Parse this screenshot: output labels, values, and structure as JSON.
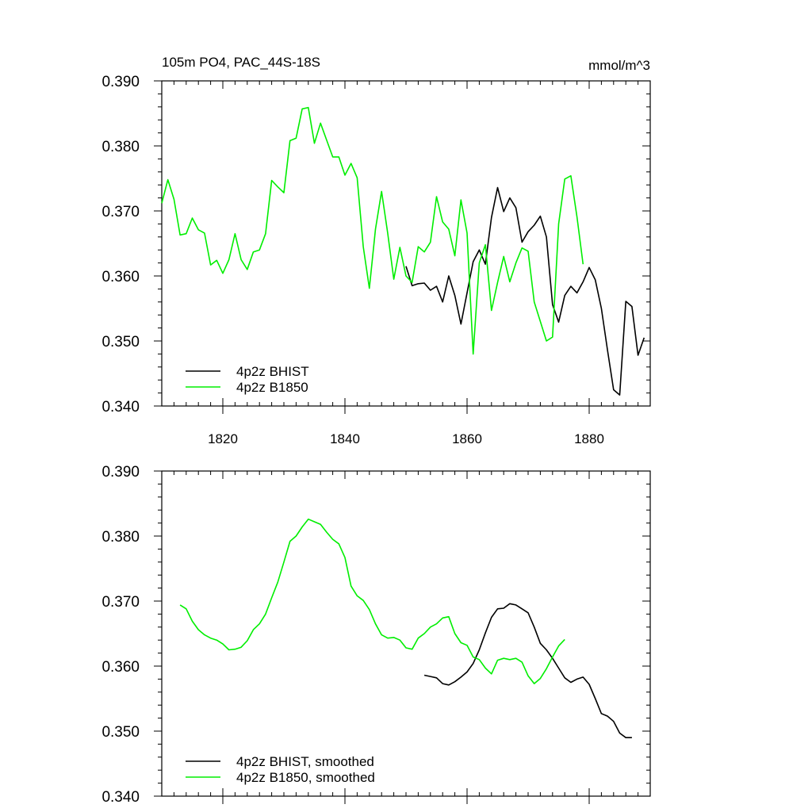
{
  "header": {
    "title": "105m PO4, PAC_44S-18S",
    "units": "mmol/m^3"
  },
  "colors": {
    "bhist": "#000000",
    "b1850": "#00ee00"
  },
  "chart_data": [
    {
      "type": "line",
      "title": "105m PO4, PAC_44S-18S",
      "units": "mmol/m^3",
      "xlim": [
        1810,
        1890
      ],
      "ylim": [
        0.34,
        0.39
      ],
      "xticks": [
        1820,
        1840,
        1860,
        1880
      ],
      "xtick_labels": [
        "1820",
        "1840",
        "1860",
        "1880"
      ],
      "yticks": [
        0.34,
        0.35,
        0.36,
        0.37,
        0.38,
        0.39
      ],
      "ytick_labels": [
        "0.340",
        "0.350",
        "0.360",
        "0.370",
        "0.380",
        "0.390"
      ],
      "legend": "bottom-left",
      "series": [
        {
          "name": "4p2z BHIST",
          "color": "#000000",
          "x": [
            1850,
            1851,
            1852,
            1853,
            1854,
            1855,
            1856,
            1857,
            1858,
            1859,
            1860,
            1861,
            1862,
            1863,
            1864,
            1865,
            1866,
            1867,
            1868,
            1869,
            1870,
            1871,
            1872,
            1873,
            1874,
            1875,
            1876,
            1877,
            1878,
            1879,
            1880,
            1881,
            1882,
            1883,
            1884,
            1885,
            1886,
            1887,
            1888,
            1889
          ],
          "y": [
            0.3615,
            0.3585,
            0.3588,
            0.3589,
            0.3578,
            0.3584,
            0.356,
            0.36,
            0.357,
            0.3526,
            0.3574,
            0.3622,
            0.364,
            0.3618,
            0.369,
            0.3736,
            0.3699,
            0.372,
            0.3705,
            0.3652,
            0.3668,
            0.3678,
            0.3692,
            0.366,
            0.3556,
            0.3529,
            0.357,
            0.3584,
            0.3574,
            0.3591,
            0.3613,
            0.3594,
            0.355,
            0.3486,
            0.3425,
            0.3417,
            0.3561,
            0.3553,
            0.3478,
            0.3505
          ]
        },
        {
          "name": "4p2z B1850",
          "color": "#00ee00",
          "x": [
            1810,
            1811,
            1812,
            1813,
            1814,
            1815,
            1816,
            1817,
            1818,
            1819,
            1820,
            1821,
            1822,
            1823,
            1824,
            1825,
            1826,
            1827,
            1828,
            1829,
            1830,
            1831,
            1832,
            1833,
            1834,
            1835,
            1836,
            1837,
            1838,
            1839,
            1840,
            1841,
            1842,
            1843,
            1844,
            1845,
            1846,
            1847,
            1848,
            1849,
            1850,
            1851,
            1852,
            1853,
            1854,
            1855,
            1856,
            1857,
            1858,
            1859,
            1860,
            1861,
            1862,
            1863,
            1864,
            1865,
            1866,
            1867,
            1868,
            1869,
            1870,
            1871,
            1872,
            1873,
            1874,
            1875,
            1876,
            1877,
            1878,
            1879
          ],
          "y": [
            0.3712,
            0.3748,
            0.3718,
            0.3663,
            0.3665,
            0.3689,
            0.3671,
            0.3666,
            0.3617,
            0.3624,
            0.3604,
            0.3625,
            0.3665,
            0.3625,
            0.361,
            0.3637,
            0.364,
            0.3665,
            0.3747,
            0.3737,
            0.3728,
            0.3808,
            0.3812,
            0.3857,
            0.3859,
            0.3804,
            0.3835,
            0.3809,
            0.3783,
            0.3783,
            0.3755,
            0.3773,
            0.3751,
            0.3645,
            0.3581,
            0.3672,
            0.373,
            0.3666,
            0.3595,
            0.3644,
            0.36,
            0.359,
            0.3645,
            0.3637,
            0.3652,
            0.3722,
            0.3683,
            0.3672,
            0.3631,
            0.3717,
            0.3666,
            0.348,
            0.362,
            0.3648,
            0.3547,
            0.359,
            0.363,
            0.3591,
            0.362,
            0.3643,
            0.3638,
            0.356,
            0.353,
            0.35,
            0.3506,
            0.368,
            0.3749,
            0.3754,
            0.3691,
            0.3618
          ]
        }
      ]
    },
    {
      "type": "line",
      "xlim": [
        1810,
        1890
      ],
      "ylim": [
        0.34,
        0.39
      ],
      "xticks": [
        1820,
        1840,
        1860,
        1880
      ],
      "yticks": [
        0.34,
        0.35,
        0.36,
        0.37,
        0.38,
        0.39
      ],
      "ytick_labels": [
        "0.340",
        "0.350",
        "0.360",
        "0.370",
        "0.380",
        "0.390"
      ],
      "legend": "bottom-left",
      "series": [
        {
          "name": "4p2z BHIST, smoothed",
          "color": "#000000",
          "x": [
            1853,
            1854,
            1855,
            1856,
            1857,
            1858,
            1859,
            1860,
            1861,
            1862,
            1863,
            1864,
            1865,
            1866,
            1867,
            1868,
            1869,
            1870,
            1871,
            1872,
            1873,
            1874,
            1875,
            1876,
            1877,
            1878,
            1879,
            1880,
            1881,
            1882,
            1883,
            1884,
            1885,
            1886,
            1887
          ],
          "y": [
            0.3586,
            0.3584,
            0.3582,
            0.3573,
            0.3571,
            0.3576,
            0.3583,
            0.3591,
            0.3604,
            0.3625,
            0.3651,
            0.3675,
            0.3688,
            0.3689,
            0.3696,
            0.3694,
            0.3688,
            0.3682,
            0.366,
            0.3635,
            0.3625,
            0.3612,
            0.3597,
            0.3582,
            0.3575,
            0.358,
            0.3583,
            0.3572,
            0.355,
            0.3527,
            0.3523,
            0.3515,
            0.3497,
            0.349,
            0.349
          ]
        },
        {
          "name": "4p2z B1850, smoothed",
          "color": "#00ee00",
          "x": [
            1813,
            1814,
            1815,
            1816,
            1817,
            1818,
            1819,
            1820,
            1821,
            1822,
            1823,
            1824,
            1825,
            1826,
            1827,
            1828,
            1829,
            1830,
            1831,
            1832,
            1833,
            1834,
            1835,
            1836,
            1837,
            1838,
            1839,
            1840,
            1841,
            1842,
            1843,
            1844,
            1845,
            1846,
            1847,
            1848,
            1849,
            1850,
            1851,
            1852,
            1853,
            1854,
            1855,
            1856,
            1857,
            1858,
            1859,
            1860,
            1861,
            1862,
            1863,
            1864,
            1865,
            1866,
            1867,
            1868,
            1869,
            1870,
            1871,
            1872,
            1873,
            1874,
            1875,
            1876
          ],
          "y": [
            0.3694,
            0.3688,
            0.3669,
            0.3656,
            0.3648,
            0.3643,
            0.364,
            0.3634,
            0.3625,
            0.3626,
            0.3629,
            0.3639,
            0.3656,
            0.3665,
            0.368,
            0.3705,
            0.3729,
            0.376,
            0.3792,
            0.38,
            0.3814,
            0.3826,
            0.3822,
            0.3818,
            0.3806,
            0.3795,
            0.3788,
            0.3767,
            0.3723,
            0.3708,
            0.3701,
            0.3687,
            0.3665,
            0.3648,
            0.3643,
            0.3644,
            0.364,
            0.3628,
            0.3626,
            0.3643,
            0.365,
            0.366,
            0.3665,
            0.3674,
            0.3676,
            0.365,
            0.3636,
            0.3632,
            0.3614,
            0.361,
            0.3597,
            0.3588,
            0.3609,
            0.3612,
            0.361,
            0.3612,
            0.3606,
            0.3585,
            0.3573,
            0.3581,
            0.3596,
            0.3614,
            0.3631,
            0.3641
          ]
        }
      ]
    }
  ]
}
